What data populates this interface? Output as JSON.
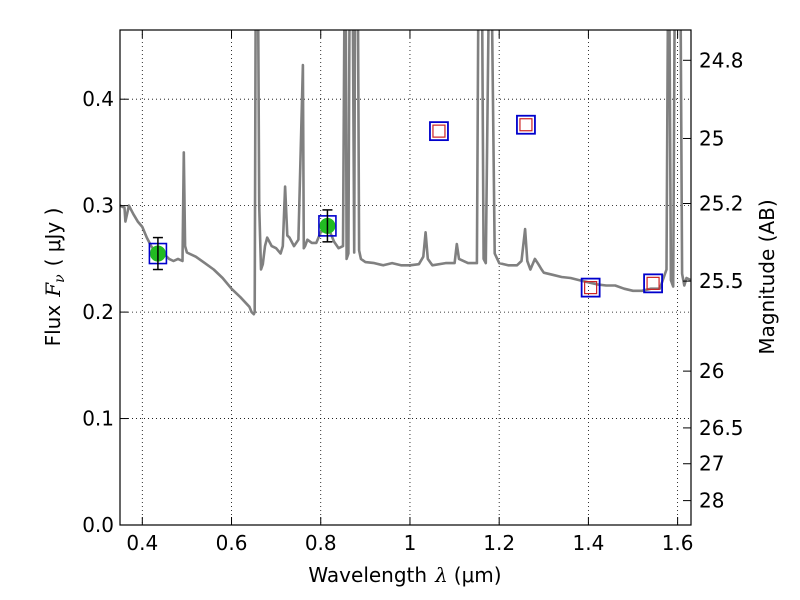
{
  "chart_data": {
    "type": "line",
    "xlabel": {
      "text": "Wavelength",
      "symbol": "λ",
      "unit": "(μm)"
    },
    "ylabel": {
      "text": "Flux",
      "symbol": "F",
      "subscript": "ν",
      "unit": "( μJy )"
    },
    "y2label": "Magnitude (AB)",
    "xlim": [
      0.35,
      1.63
    ],
    "ylim": [
      0.0,
      0.465
    ],
    "grid": true,
    "x_ticks": [
      {
        "value": 0.4,
        "label": "0.4"
      },
      {
        "value": 0.6,
        "label": "0.6"
      },
      {
        "value": 0.8,
        "label": "0.8"
      },
      {
        "value": 1.0,
        "label": "1"
      },
      {
        "value": 1.2,
        "label": "1.2"
      },
      {
        "value": 1.4,
        "label": "1.4"
      },
      {
        "value": 1.6,
        "label": "1.6"
      }
    ],
    "y_ticks": [
      {
        "value": 0.0,
        "label": "0.0"
      },
      {
        "value": 0.1,
        "label": "0.1"
      },
      {
        "value": 0.2,
        "label": "0.2"
      },
      {
        "value": 0.3,
        "label": "0.3"
      },
      {
        "value": 0.4,
        "label": "0.4"
      }
    ],
    "y2_ticks": [
      {
        "value": 24.8,
        "label": "24.8"
      },
      {
        "value": 25.0,
        "label": "25"
      },
      {
        "value": 25.2,
        "label": "25.2"
      },
      {
        "value": 25.5,
        "label": "25.5"
      },
      {
        "value": 26.0,
        "label": "26"
      },
      {
        "value": 26.5,
        "label": "26.5"
      },
      {
        "value": 27.0,
        "label": "27"
      },
      {
        "value": 28.0,
        "label": "28"
      }
    ],
    "series": [
      {
        "type": "line",
        "color": "#808080",
        "x": [
          0.35,
          0.36,
          0.362,
          0.37,
          0.38,
          0.39,
          0.4,
          0.41,
          0.42,
          0.43,
          0.44,
          0.45,
          0.46,
          0.47,
          0.48,
          0.49,
          0.493,
          0.496,
          0.5,
          0.52,
          0.54,
          0.56,
          0.58,
          0.6,
          0.62,
          0.64,
          0.645,
          0.65,
          0.652,
          0.655,
          0.658,
          0.662,
          0.666,
          0.67,
          0.675,
          0.68,
          0.69,
          0.7,
          0.71,
          0.715,
          0.72,
          0.725,
          0.73,
          0.74,
          0.75,
          0.76,
          0.762,
          0.765,
          0.77,
          0.78,
          0.79,
          0.8,
          0.81,
          0.82,
          0.83,
          0.84,
          0.85,
          0.855,
          0.858,
          0.862,
          0.866,
          0.87,
          0.875,
          0.878,
          0.882,
          0.886,
          0.89,
          0.9,
          0.92,
          0.94,
          0.96,
          0.98,
          1.0,
          1.02,
          1.03,
          1.035,
          1.04,
          1.05,
          1.08,
          1.1,
          1.105,
          1.11,
          1.13,
          1.15,
          1.155,
          1.16,
          1.165,
          1.17,
          1.18,
          1.19,
          1.2,
          1.22,
          1.24,
          1.25,
          1.258,
          1.263,
          1.27,
          1.28,
          1.288,
          1.295,
          1.3,
          1.32,
          1.34,
          1.36,
          1.38,
          1.4,
          1.42,
          1.44,
          1.46,
          1.48,
          1.5,
          1.52,
          1.54,
          1.56,
          1.575,
          1.58,
          1.585,
          1.59,
          1.595,
          1.6,
          1.605,
          1.61,
          1.615,
          1.62,
          1.63
        ],
        "y": [
          0.3,
          0.298,
          0.285,
          0.3,
          0.292,
          0.285,
          0.28,
          0.27,
          0.262,
          0.256,
          0.252,
          0.254,
          0.25,
          0.248,
          0.25,
          0.248,
          0.35,
          0.262,
          0.256,
          0.252,
          0.246,
          0.24,
          0.232,
          0.222,
          0.214,
          0.205,
          0.2,
          0.198,
          0.2,
          0.62,
          0.62,
          0.3,
          0.24,
          0.245,
          0.262,
          0.27,
          0.262,
          0.26,
          0.255,
          0.262,
          0.318,
          0.272,
          0.27,
          0.262,
          0.268,
          0.432,
          0.26,
          0.262,
          0.268,
          0.265,
          0.265,
          0.275,
          0.278,
          0.276,
          0.266,
          0.26,
          0.262,
          0.62,
          0.25,
          0.255,
          0.62,
          0.62,
          0.256,
          0.62,
          0.62,
          0.258,
          0.25,
          0.247,
          0.246,
          0.244,
          0.246,
          0.244,
          0.244,
          0.245,
          0.252,
          0.275,
          0.25,
          0.244,
          0.246,
          0.246,
          0.264,
          0.25,
          0.246,
          0.246,
          0.62,
          0.62,
          0.25,
          0.246,
          0.62,
          0.255,
          0.246,
          0.244,
          0.244,
          0.248,
          0.278,
          0.248,
          0.24,
          0.25,
          0.245,
          0.24,
          0.237,
          0.235,
          0.233,
          0.232,
          0.23,
          0.228,
          0.226,
          0.225,
          0.225,
          0.222,
          0.22,
          0.22,
          0.222,
          0.222,
          0.24,
          0.62,
          0.23,
          0.224,
          0.62,
          0.62,
          0.62,
          0.236,
          0.225,
          0.232,
          0.23
        ],
        "y_label_note": "segments reaching 0.62 exceed the plotted range"
      }
    ],
    "points": [
      {
        "type": "measured",
        "x": 0.435,
        "y": 0.255,
        "yerr": 0.015,
        "marker": "circle",
        "fill": "#22bb22",
        "box_color": "#0000cc"
      },
      {
        "type": "measured",
        "x": 0.815,
        "y": 0.281,
        "yerr": 0.015,
        "marker": "circle",
        "fill": "#22bb22",
        "box_color": "#0000cc"
      },
      {
        "type": "model",
        "x": 1.065,
        "y": 0.37,
        "box_color": "#0000cc",
        "inner_color": "#cc2222"
      },
      {
        "type": "model",
        "x": 1.26,
        "y": 0.376,
        "box_color": "#0000cc",
        "inner_color": "#cc2222"
      },
      {
        "type": "model",
        "x": 1.405,
        "y": 0.223,
        "box_color": "#0000cc",
        "inner_color": "#cc2222"
      },
      {
        "type": "model",
        "x": 1.545,
        "y": 0.227,
        "box_color": "#0000cc",
        "inner_color": "#cc2222"
      }
    ]
  }
}
